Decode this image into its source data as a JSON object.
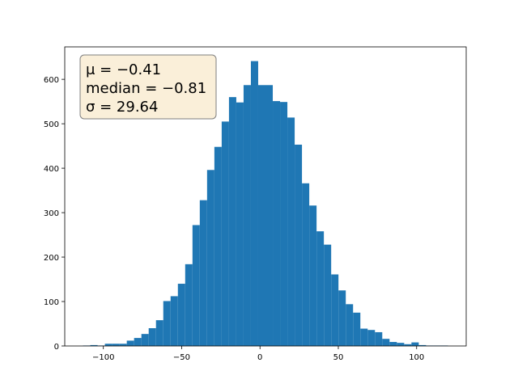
{
  "chart_data": {
    "type": "histogram",
    "annotation": [
      "μ = −0.41",
      "median = −0.81",
      "σ = 29.64"
    ],
    "bins": [
      -113,
      -108.34,
      -103.68,
      -99.02,
      -94.36,
      -89.7,
      -85.04,
      -80.38,
      -75.72,
      -71.06,
      -66.4,
      -61.74,
      -57.08,
      -52.42,
      -47.76,
      -43.1,
      -38.44,
      -33.78,
      -29.12,
      -24.46,
      -19.8,
      -15.14,
      -10.48,
      -5.82,
      -1.16,
      3.5,
      8.16,
      12.82,
      17.48,
      22.14,
      26.8,
      31.46,
      36.12,
      40.78,
      45.44,
      50.1,
      54.76,
      59.42,
      64.08,
      68.74,
      73.4,
      78.06,
      82.72,
      87.38,
      92.04,
      96.7,
      101.36,
      106.02,
      110.68,
      115.34,
      120
    ],
    "values": [
      1,
      2,
      1,
      5,
      5,
      5,
      12,
      18,
      27,
      40,
      58,
      101,
      112,
      140,
      184,
      272,
      328,
      396,
      448,
      505,
      560,
      548,
      587,
      641,
      587,
      587,
      551,
      549,
      514,
      453,
      366,
      316,
      258,
      228,
      161,
      125,
      94,
      75,
      39,
      36,
      31,
      16,
      9,
      7,
      4,
      8,
      2,
      1,
      1,
      1
    ],
    "color": "#1f77b4",
    "xlim": [
      -124.65,
      131.65
    ],
    "xticks": [
      {
        "value": -100,
        "label": "−100"
      },
      {
        "value": -50,
        "label": "−50"
      },
      0,
      50,
      100
    ],
    "ylim": [
      0,
      673
    ],
    "yticks": [
      0,
      100,
      200,
      300,
      400,
      500,
      600
    ],
    "grid": false
  }
}
